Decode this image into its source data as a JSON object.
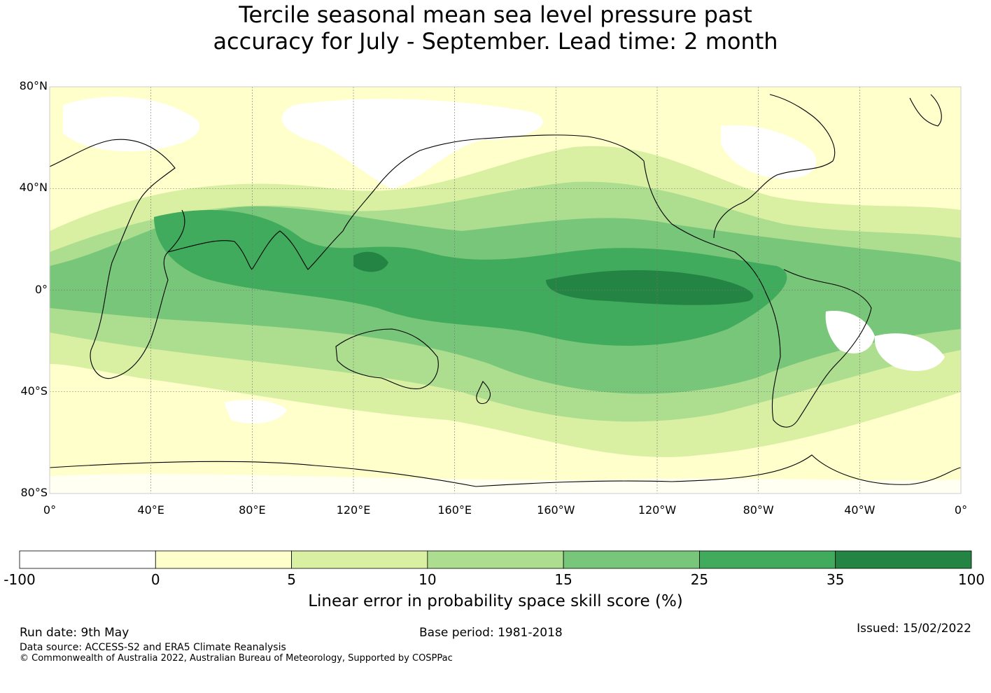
{
  "title": {
    "line1": "Tercile seasonal mean sea level pressure past",
    "line2": "accuracy for July - September. Lead time: 2 month"
  },
  "map": {
    "lat_ticks": [
      "80°N",
      "40°N",
      "0°",
      "40°S",
      "80°S"
    ],
    "lat_values": [
      80,
      40,
      0,
      -40,
      -80
    ],
    "lon_ticks": [
      "0°",
      "40°E",
      "80°E",
      "120°E",
      "160°E",
      "160°W",
      "120°W",
      "80°W",
      "40°W",
      "0°"
    ],
    "lon_values": [
      0,
      40,
      80,
      120,
      160,
      200,
      240,
      280,
      320,
      360
    ],
    "lon_range": [
      0,
      360
    ],
    "lat_range": [
      -80,
      80
    ],
    "gridlines": true
  },
  "colorbar": {
    "bounds": [
      "-100",
      "0",
      "5",
      "10",
      "15",
      "25",
      "35",
      "100"
    ],
    "colors": [
      "#ffffff",
      "#ffffcc",
      "#d9f0a3",
      "#addd8e",
      "#78c679",
      "#41ab5d",
      "#238443"
    ],
    "label": "Linear error in probability space skill score (%)"
  },
  "footer": {
    "run_date": "Run date: 9th May",
    "base_period": "Base period: 1981-2018",
    "issued": "Issued: 15/02/2022",
    "data_source": "Data source: ACCESS-S2 and ERA5 Climate Reanalysis",
    "copyright": "© Commonwealth of Australia 2022, Australian Bureau of Meteorology, Supported by COSPPac"
  }
}
